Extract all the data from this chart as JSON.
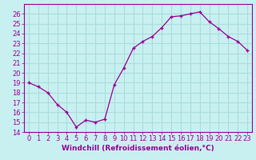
{
  "x": [
    0,
    1,
    2,
    3,
    4,
    5,
    6,
    7,
    8,
    9,
    10,
    11,
    12,
    13,
    14,
    15,
    16,
    17,
    18,
    19,
    20,
    21,
    22,
    23
  ],
  "y": [
    19,
    18.6,
    18,
    16.8,
    16,
    14.5,
    15.2,
    15.0,
    15.3,
    18.8,
    20.5,
    22.5,
    23.2,
    23.7,
    24.6,
    25.7,
    25.8,
    26.0,
    26.2,
    25.2,
    24.5,
    23.7,
    23.2,
    22.3
  ],
  "line_color": "#990099",
  "marker": "+",
  "marker_size": 3.5,
  "linewidth": 0.9,
  "xlabel": "Windchill (Refroidissement éolien,°C)",
  "xlim": [
    -0.5,
    23.5
  ],
  "ylim": [
    14,
    27
  ],
  "yticks": [
    14,
    15,
    16,
    17,
    18,
    19,
    20,
    21,
    22,
    23,
    24,
    25,
    26
  ],
  "xticks": [
    0,
    1,
    2,
    3,
    4,
    5,
    6,
    7,
    8,
    9,
    10,
    11,
    12,
    13,
    14,
    15,
    16,
    17,
    18,
    19,
    20,
    21,
    22,
    23
  ],
  "bg_color": "#c8f0f0",
  "grid_color": "#aadddd",
  "tick_color": "#990099",
  "label_color": "#990099",
  "xlabel_fontsize": 6.5,
  "tick_fontsize": 6.0
}
